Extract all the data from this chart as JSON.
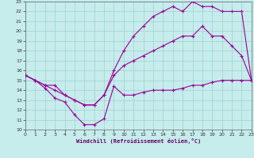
{
  "xlabel": "Windchill (Refroidissement éolien,°C)",
  "xlim": [
    0,
    23
  ],
  "ylim": [
    10,
    23
  ],
  "xticks": [
    0,
    1,
    2,
    3,
    4,
    5,
    6,
    7,
    8,
    9,
    10,
    11,
    12,
    13,
    14,
    15,
    16,
    17,
    18,
    19,
    20,
    21,
    22,
    23
  ],
  "yticks": [
    10,
    11,
    12,
    13,
    14,
    15,
    16,
    17,
    18,
    19,
    20,
    21,
    22,
    23
  ],
  "background_color": "#c6ecec",
  "grid_color": "#a0d0d0",
  "line_color": "#990099",
  "line1_x": [
    0,
    1,
    2,
    3,
    4,
    5,
    6,
    7,
    8,
    9,
    10,
    11,
    12,
    13,
    14,
    15,
    16,
    17,
    18,
    19,
    20,
    21,
    22,
    23
  ],
  "line1_y": [
    15.5,
    15.0,
    14.2,
    13.2,
    12.8,
    11.5,
    10.5,
    10.5,
    11.1,
    14.4,
    13.5,
    13.5,
    13.8,
    14.0,
    14.0,
    14.0,
    14.2,
    14.5,
    14.5,
    14.8,
    15.0,
    15.0,
    15.0,
    15.0
  ],
  "line2_x": [
    0,
    1,
    2,
    3,
    4,
    5,
    6,
    7,
    8,
    9,
    10,
    11,
    12,
    13,
    14,
    15,
    16,
    17,
    18,
    19,
    20,
    21,
    22,
    23
  ],
  "line2_y": [
    15.5,
    15.0,
    14.5,
    14.0,
    13.5,
    13.0,
    12.5,
    12.5,
    13.5,
    15.5,
    16.5,
    17.0,
    17.5,
    18.0,
    18.5,
    19.0,
    19.5,
    19.5,
    20.5,
    19.5,
    19.5,
    18.5,
    17.5,
    15.0
  ],
  "line3_x": [
    0,
    1,
    2,
    3,
    4,
    5,
    6,
    7,
    8,
    9,
    10,
    11,
    12,
    13,
    14,
    15,
    16,
    17,
    18,
    19,
    20,
    21,
    22,
    23
  ],
  "line3_y": [
    15.5,
    15.0,
    14.5,
    14.5,
    13.5,
    13.0,
    12.5,
    12.5,
    13.5,
    16.0,
    18.0,
    19.5,
    20.5,
    21.5,
    22.0,
    22.5,
    22.0,
    23.0,
    22.5,
    22.5,
    22.0,
    22.0,
    22.0,
    15.0
  ]
}
